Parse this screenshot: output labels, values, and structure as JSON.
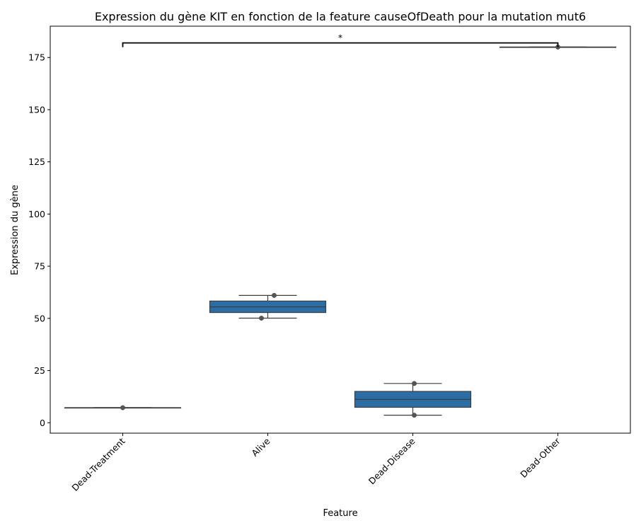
{
  "chart_data": {
    "type": "box",
    "title": "Expression du gène KIT en fonction de la feature causeOfDeath pour la mutation mut6",
    "xlabel": "Feature",
    "ylabel": "Expression du gène",
    "ylim": [
      -5,
      190
    ],
    "yticks": [
      0,
      25,
      50,
      75,
      100,
      125,
      150,
      175
    ],
    "categories": [
      "Dead-Treatment",
      "Alive",
      "Dead-Disease",
      "Dead-Other"
    ],
    "boxes": [
      {
        "category": "Dead-Treatment",
        "min": 7.2,
        "q1": 7.2,
        "median": 7.2,
        "q3": 7.2,
        "max": 7.2,
        "points": [
          7.2
        ]
      },
      {
        "category": "Alive",
        "min": 50.1,
        "q1": 52.8,
        "median": 55.5,
        "q3": 58.3,
        "max": 61.0,
        "points": [
          61.0,
          50.1
        ]
      },
      {
        "category": "Dead-Disease",
        "min": 3.6,
        "q1": 7.4,
        "median": 11.2,
        "q3": 15.0,
        "max": 18.8,
        "points": [
          18.8,
          3.6
        ]
      },
      {
        "category": "Dead-Other",
        "min": 180.0,
        "q1": 180.0,
        "median": 180.0,
        "q3": 180.0,
        "max": 180.0,
        "points": [
          180.0
        ]
      }
    ],
    "box_color": "#2b6ea6",
    "annotations": [
      {
        "from": "Dead-Treatment",
        "to": "Dead-Other",
        "y": 182,
        "text": "*"
      }
    ],
    "grid": false,
    "legend": "none"
  }
}
